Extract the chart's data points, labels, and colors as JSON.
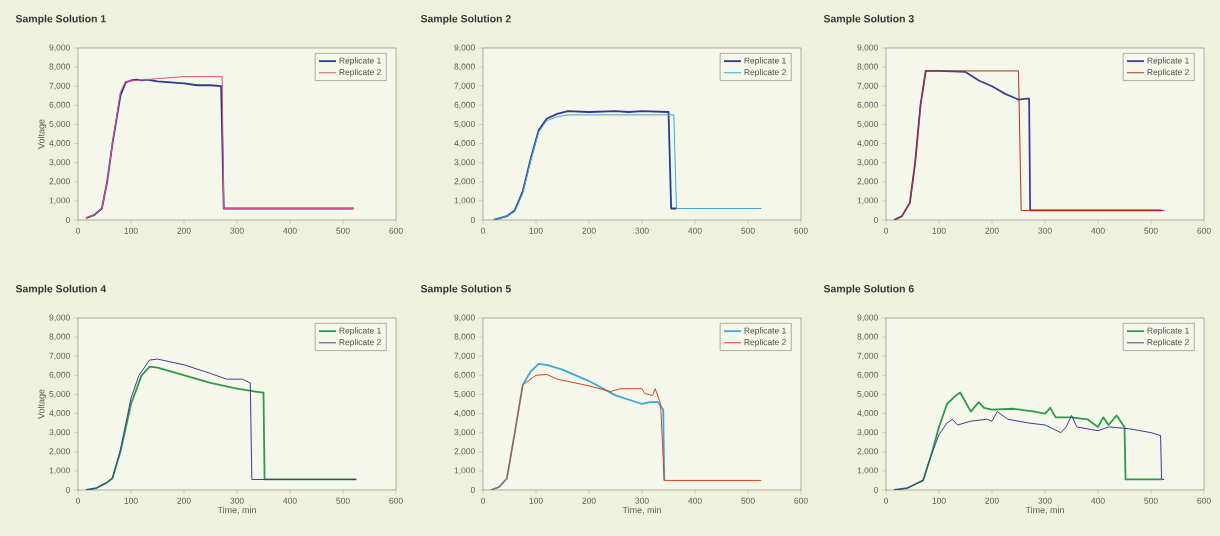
{
  "chart_data": [
    {
      "type": "line",
      "title": "Sample Solution 1",
      "ylabel": "Voltage",
      "xlim": [
        0,
        600
      ],
      "xticks": [
        0,
        100,
        200,
        300,
        400,
        500,
        600
      ],
      "ylim": [
        0,
        9000
      ],
      "yticks": [
        0,
        {
          "value": 1000,
          "label": "1,000"
        },
        {
          "value": 2000,
          "label": "2,000"
        },
        {
          "value": 3000,
          "label": "3,000"
        },
        {
          "value": 4000,
          "label": "4,000"
        },
        {
          "value": 5000,
          "label": "5,000"
        },
        {
          "value": 6000,
          "label": "6,000"
        },
        {
          "value": 7000,
          "label": "7,000"
        },
        {
          "value": 8000,
          "label": "8,000"
        },
        {
          "value": 9000,
          "label": "9,000"
        }
      ],
      "legend": "top right",
      "grid": false,
      "marker": "none",
      "line_style": "solid",
      "series": [
        {
          "name": "Replicate 1",
          "color": "#2e3a8c",
          "x": [
            15,
            30,
            45,
            55,
            65,
            80,
            90,
            100,
            110,
            120,
            130,
            150,
            175,
            200,
            225,
            250,
            270,
            275,
            520
          ],
          "values": [
            100,
            250,
            600,
            2000,
            4000,
            6500,
            7200,
            7300,
            7350,
            7300,
            7350,
            7250,
            7200,
            7150,
            7050,
            7050,
            7000,
            600,
            600
          ]
        },
        {
          "name": "Replicate 2",
          "color": "#e0508a",
          "x": [
            15,
            30,
            45,
            55,
            65,
            80,
            90,
            110,
            150,
            200,
            250,
            272,
            275,
            520
          ],
          "values": [
            100,
            250,
            600,
            2000,
            4000,
            6700,
            7250,
            7300,
            7400,
            7500,
            7500,
            7500,
            600,
            600
          ]
        }
      ]
    },
    {
      "type": "line",
      "title": "Sample Solution 2",
      "xlim": [
        0,
        600
      ],
      "xticks": [
        0,
        100,
        200,
        300,
        400,
        500,
        600
      ],
      "ylim": [
        0,
        9000
      ],
      "yticks": [
        0,
        {
          "value": 1000,
          "label": "1,000"
        },
        {
          "value": 2000,
          "label": "2,000"
        },
        {
          "value": 3000,
          "label": "3,000"
        },
        {
          "value": 4000,
          "label": "4,000"
        },
        {
          "value": 5000,
          "label": "5,000"
        },
        {
          "value": 6000,
          "label": "6,000"
        },
        {
          "value": 7000,
          "label": "7,000"
        },
        {
          "value": 8000,
          "label": "8,000"
        },
        {
          "value": 9000,
          "label": "9,000"
        }
      ],
      "legend": "top right",
      "grid": false,
      "marker": "none",
      "line_style": "solid",
      "series": [
        {
          "name": "Replicate 1",
          "color": "#2e3a8c",
          "x": [
            20,
            45,
            60,
            75,
            90,
            105,
            120,
            140,
            160,
            200,
            250,
            275,
            300,
            350,
            355,
            365
          ],
          "values": [
            0,
            200,
            500,
            1500,
            3200,
            4700,
            5300,
            5550,
            5700,
            5650,
            5700,
            5650,
            5700,
            5650,
            600,
            600
          ]
        },
        {
          "name": "Replicate 2",
          "color": "#3aa8d8",
          "x": [
            20,
            45,
            60,
            75,
            90,
            105,
            120,
            140,
            160,
            250,
            300,
            360,
            365,
            525
          ],
          "values": [
            0,
            200,
            450,
            1400,
            3100,
            4600,
            5200,
            5400,
            5500,
            5500,
            5500,
            5500,
            600,
            600
          ]
        }
      ]
    },
    {
      "type": "line",
      "title": "Sample Solution 3",
      "xlim": [
        0,
        600
      ],
      "xticks": [
        0,
        100,
        200,
        300,
        400,
        500,
        600
      ],
      "ylim": [
        0,
        9000
      ],
      "yticks": [
        0,
        {
          "value": 1000,
          "label": "1,000"
        },
        {
          "value": 2000,
          "label": "2,000"
        },
        {
          "value": 3000,
          "label": "3,000"
        },
        {
          "value": 4000,
          "label": "4,000"
        },
        {
          "value": 5000,
          "label": "5,000"
        },
        {
          "value": 6000,
          "label": "6,000"
        },
        {
          "value": 7000,
          "label": "7,000"
        },
        {
          "value": 8000,
          "label": "8,000"
        },
        {
          "value": 9000,
          "label": "9,000"
        }
      ],
      "legend": "top right",
      "grid": false,
      "marker": "none",
      "line_style": "solid",
      "series": [
        {
          "name": "Replicate 1",
          "color": "#3c3c9a",
          "x": [
            15,
            30,
            45,
            55,
            65,
            75,
            100,
            150,
            175,
            200,
            225,
            250,
            265,
            270,
            272,
            520
          ],
          "values": [
            0,
            200,
            900,
            3000,
            6000,
            7800,
            7800,
            7750,
            7300,
            7000,
            6600,
            6300,
            6350,
            6350,
            500,
            500
          ]
        },
        {
          "name": "Replicate 2",
          "color": "#b03020",
          "x": [
            15,
            30,
            45,
            55,
            65,
            75,
            250,
            255,
            525
          ],
          "values": [
            0,
            200,
            900,
            3000,
            6000,
            7800,
            7800,
            500,
            500
          ]
        }
      ]
    },
    {
      "type": "line",
      "title": "Sample Solution 4",
      "ylabel": "Voltage",
      "xlabel": "Time, min",
      "xlim": [
        0,
        600
      ],
      "xticks": [
        0,
        100,
        200,
        300,
        400,
        500,
        600
      ],
      "ylim": [
        0,
        9000
      ],
      "yticks": [
        0,
        {
          "value": 1000,
          "label": "1,000"
        },
        {
          "value": 2000,
          "label": "2,000"
        },
        {
          "value": 3000,
          "label": "3,000"
        },
        {
          "value": 4000,
          "label": "4,000"
        },
        {
          "value": 5000,
          "label": "5,000"
        },
        {
          "value": 6000,
          "label": "6,000"
        },
        {
          "value": 7000,
          "label": "7,000"
        },
        {
          "value": 8000,
          "label": "8,000"
        },
        {
          "value": 9000,
          "label": "9,000"
        }
      ],
      "legend": "top right",
      "grid": false,
      "marker": "none",
      "line_style": "solid",
      "series": [
        {
          "name": "Replicate 1",
          "color": "#2e9a4a",
          "x": [
            15,
            35,
            55,
            65,
            80,
            100,
            120,
            135,
            150,
            200,
            250,
            300,
            335,
            350,
            352,
            525
          ],
          "values": [
            0,
            100,
            400,
            600,
            2000,
            4500,
            6000,
            6450,
            6400,
            6000,
            5600,
            5300,
            5150,
            5100,
            550,
            550
          ]
        },
        {
          "name": "Replicate 2",
          "color": "#3c3c9a",
          "x": [
            15,
            35,
            55,
            65,
            80,
            100,
            115,
            135,
            150,
            200,
            250,
            280,
            310,
            325,
            328,
            525
          ],
          "values": [
            0,
            100,
            400,
            650,
            2100,
            4800,
            6000,
            6800,
            6850,
            6550,
            6100,
            5800,
            5800,
            5600,
            550,
            550
          ]
        }
      ]
    },
    {
      "type": "line",
      "title": "Sample Solution 5",
      "xlabel": "Time, min",
      "xlim": [
        0,
        600
      ],
      "xticks": [
        0,
        100,
        200,
        300,
        400,
        500,
        600
      ],
      "ylim": [
        0,
        9000
      ],
      "yticks": [
        0,
        {
          "value": 1000,
          "label": "1,000"
        },
        {
          "value": 2000,
          "label": "2,000"
        },
        {
          "value": 3000,
          "label": "3,000"
        },
        {
          "value": 4000,
          "label": "4,000"
        },
        {
          "value": 5000,
          "label": "5,000"
        },
        {
          "value": 6000,
          "label": "6,000"
        },
        {
          "value": 7000,
          "label": "7,000"
        },
        {
          "value": 8000,
          "label": "8,000"
        },
        {
          "value": 9000,
          "label": "9,000"
        }
      ],
      "legend": "top right",
      "grid": false,
      "marker": "none",
      "line_style": "solid",
      "series": [
        {
          "name": "Replicate 1",
          "color": "#3aa8d8",
          "x": [
            15,
            30,
            45,
            60,
            75,
            90,
            105,
            120,
            150,
            200,
            250,
            300,
            315,
            330,
            340,
            342
          ],
          "values": [
            0,
            150,
            600,
            3000,
            5500,
            6200,
            6600,
            6550,
            6300,
            5700,
            4950,
            4500,
            4600,
            4600,
            4200,
            500
          ]
        },
        {
          "name": "Replicate 2",
          "color": "#e04020",
          "x": [
            15,
            30,
            45,
            60,
            75,
            100,
            120,
            140,
            200,
            240,
            260,
            300,
            305,
            320,
            325,
            335,
            342,
            525
          ],
          "values": [
            0,
            150,
            600,
            3000,
            5500,
            6000,
            6050,
            5800,
            5450,
            5150,
            5300,
            5300,
            5050,
            4950,
            5300,
            4500,
            500,
            500
          ]
        }
      ]
    },
    {
      "type": "line",
      "title": "Sample Solution 6",
      "xlabel": "Time, min",
      "xlim": [
        0,
        600
      ],
      "xticks": [
        0,
        100,
        200,
        300,
        400,
        500,
        600
      ],
      "ylim": [
        0,
        9000
      ],
      "yticks": [
        0,
        {
          "value": 1000,
          "label": "1,000"
        },
        {
          "value": 2000,
          "label": "2,000"
        },
        {
          "value": 3000,
          "label": "3,000"
        },
        {
          "value": 4000,
          "label": "4,000"
        },
        {
          "value": 5000,
          "label": "5,000"
        },
        {
          "value": 6000,
          "label": "6,000"
        },
        {
          "value": 7000,
          "label": "7,000"
        },
        {
          "value": 8000,
          "label": "8,000"
        },
        {
          "value": 9000,
          "label": "9,000"
        }
      ],
      "legend": "top right",
      "grid": false,
      "marker": "none",
      "line_style": "solid",
      "series": [
        {
          "name": "Replicate 1",
          "color": "#2e9a4a",
          "x": [
            15,
            40,
            55,
            70,
            85,
            100,
            115,
            130,
            140,
            150,
            160,
            175,
            185,
            200,
            240,
            280,
            300,
            310,
            320,
            350,
            380,
            400,
            410,
            420,
            435,
            450,
            452,
            520
          ],
          "values": [
            0,
            100,
            300,
            500,
            1800,
            3300,
            4500,
            4900,
            5100,
            4600,
            4100,
            4600,
            4300,
            4200,
            4250,
            4100,
            4000,
            4300,
            3800,
            3800,
            3700,
            3300,
            3800,
            3400,
            3900,
            3300,
            550,
            550
          ]
        },
        {
          "name": "Replicate 2",
          "color": "#3c3c9a",
          "x": [
            15,
            40,
            55,
            70,
            85,
            100,
            115,
            125,
            135,
            160,
            190,
            200,
            210,
            230,
            270,
            300,
            330,
            340,
            350,
            360,
            400,
            420,
            460,
            500,
            518,
            520,
            525
          ],
          "values": [
            0,
            100,
            300,
            500,
            1800,
            2900,
            3500,
            3700,
            3400,
            3600,
            3700,
            3600,
            4100,
            3700,
            3500,
            3400,
            3000,
            3300,
            3900,
            3300,
            3100,
            3300,
            3200,
            3000,
            2850,
            550,
            550
          ]
        }
      ]
    }
  ]
}
